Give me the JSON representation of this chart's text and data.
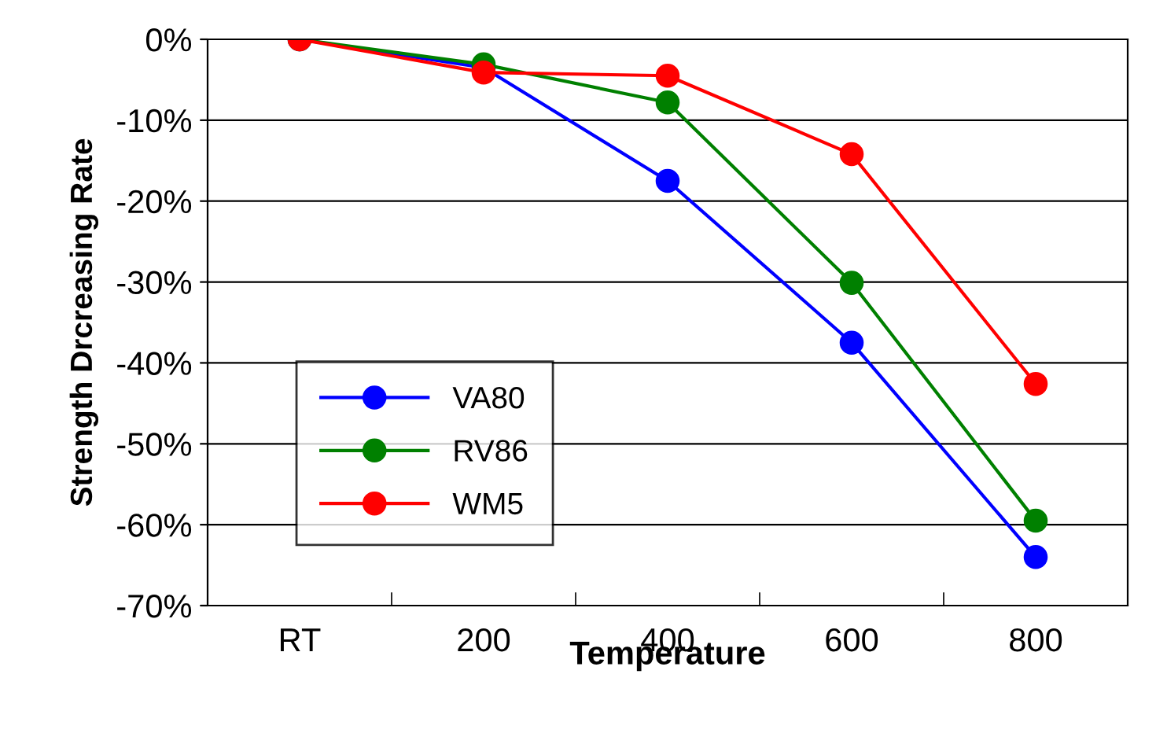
{
  "chart_data": {
    "type": "line",
    "xlabel": "Temperature",
    "ylabel": "Strength Drcreasing Rate",
    "categories": [
      "RT",
      "200",
      "400",
      "600",
      "800"
    ],
    "series": [
      {
        "name": "VA80",
        "color": "#0000ff",
        "values": [
          0,
          -3.5,
          -17.5,
          -37.5,
          -64
        ]
      },
      {
        "name": "RV86",
        "color": "#008000",
        "values": [
          0,
          -3.1,
          -7.8,
          -30.1,
          -59.5
        ]
      },
      {
        "name": "WM5",
        "color": "#ff0000",
        "values": [
          0,
          -4.1,
          -4.5,
          -14.2,
          -42.6
        ]
      }
    ],
    "ylim": [
      -70,
      0
    ],
    "yticks": [
      {
        "value": -70,
        "label": "-70%"
      },
      {
        "value": -60,
        "label": "-60%"
      },
      {
        "value": -50,
        "label": "-50%"
      },
      {
        "value": -40,
        "label": "-40%"
      },
      {
        "value": -30,
        "label": "-30%"
      },
      {
        "value": -20,
        "label": "-20%"
      },
      {
        "value": -10,
        "label": "-10%"
      },
      {
        "value": 0,
        "label": "0%"
      }
    ],
    "grid": "y",
    "legend": "bottom left",
    "marker": "circle",
    "line_style": "solid"
  }
}
